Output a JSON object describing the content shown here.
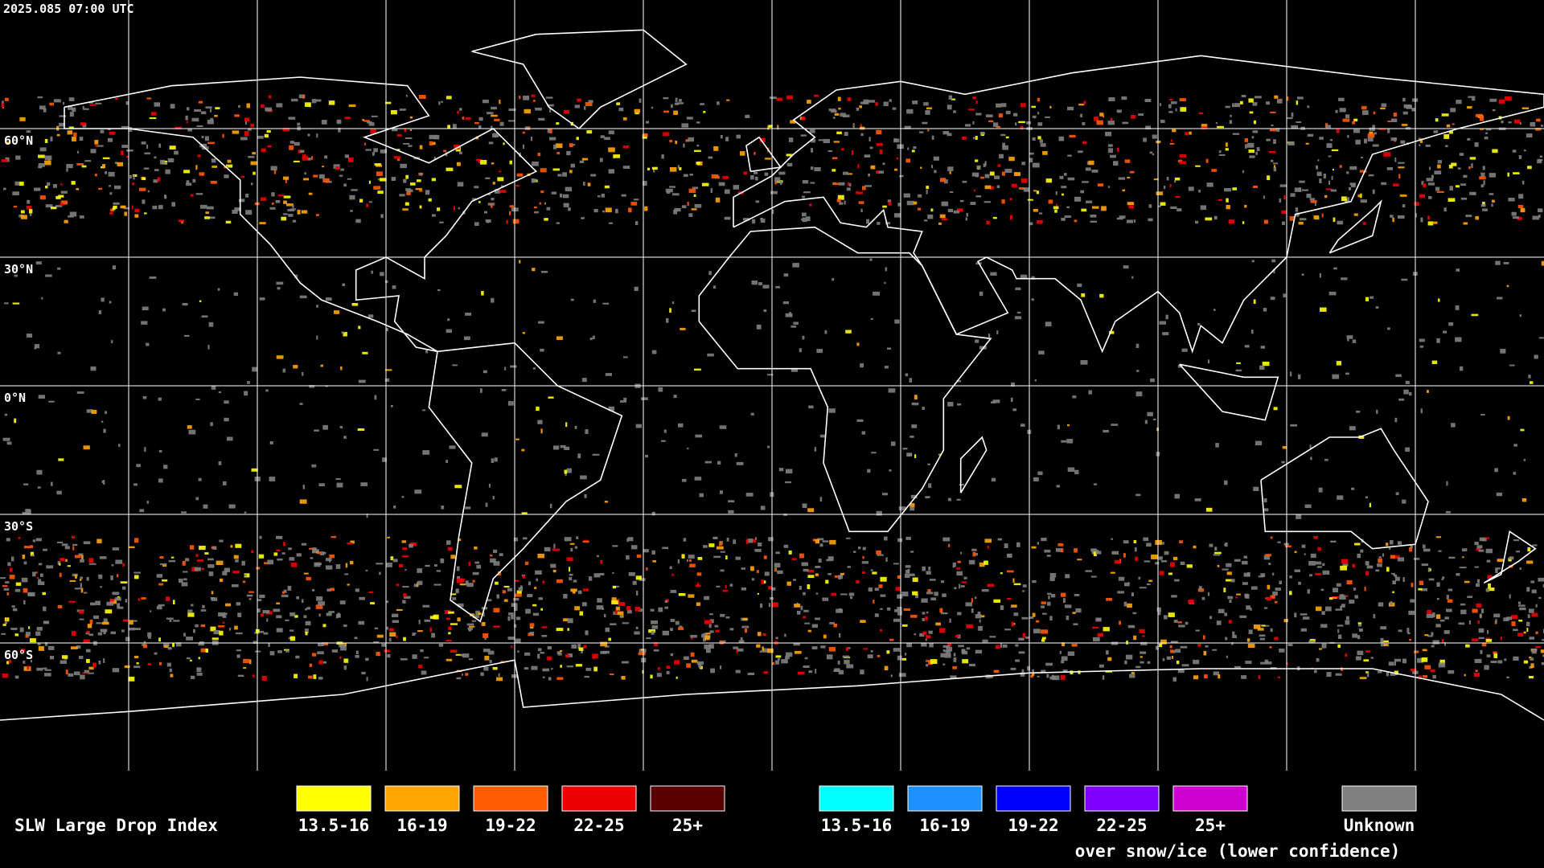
{
  "header": {
    "timestamp": "2025.085 07:00 UTC"
  },
  "map": {
    "lat_labels": [
      "60°N",
      "30°N",
      "0°N",
      "30°S",
      "60°S"
    ]
  },
  "legend": {
    "title": "SLW Large Drop Index",
    "items": [
      {
        "label": "13.5-16",
        "color": "#ffff00"
      },
      {
        "label": "16-19",
        "color": "#ffa500"
      },
      {
        "label": "19-22",
        "color": "#ff5a00"
      },
      {
        "label": "22-25",
        "color": "#ee0000"
      },
      {
        "label": "25+",
        "color": "#5a0000"
      }
    ],
    "snow_items": [
      {
        "label": "13.5-16",
        "color": "#00ffff"
      },
      {
        "label": "16-19",
        "color": "#1e90ff"
      },
      {
        "label": "19-22",
        "color": "#0000ff"
      },
      {
        "label": "22-25",
        "color": "#8000ff"
      },
      {
        "label": "25+",
        "color": "#d000d0"
      }
    ],
    "snow_caption": "over snow/ice (lower confidence)",
    "unknown": {
      "label": "Unknown",
      "color": "#808080"
    }
  }
}
